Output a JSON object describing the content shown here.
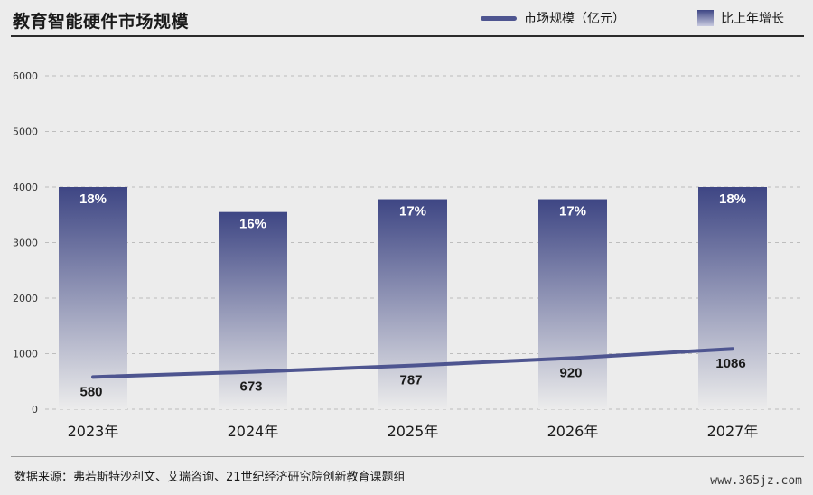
{
  "header": {
    "title": "教育智能硬件市场规模"
  },
  "legend": {
    "line_label": "市场规模（亿元）",
    "bar_label": "比上年增长"
  },
  "colors": {
    "line": "#4e5590",
    "bar_top": "#3e4684",
    "bar_bottom": "#ececec",
    "grid": "#bdbdbd"
  },
  "chart_data": {
    "type": "bar",
    "categories": [
      "2023年",
      "2024年",
      "2025年",
      "2026年",
      "2027年"
    ],
    "ylim": [
      0,
      6000
    ],
    "yticks": [
      0,
      1000,
      2000,
      3000,
      4000,
      5000,
      6000
    ],
    "grid": true,
    "legend_position": "top-right",
    "series": [
      {
        "name": "比上年增长",
        "type": "bar",
        "values": [
          4000,
          3550,
          3780,
          3780,
          4000
        ],
        "labels": [
          "18%",
          "16%",
          "17%",
          "17%",
          "18%"
        ]
      },
      {
        "name": "市场规模（亿元）",
        "type": "line",
        "values": [
          580,
          673,
          787,
          920,
          1086
        ],
        "labels": [
          "580",
          "673",
          "787",
          "920",
          "1086"
        ]
      }
    ]
  },
  "footer": {
    "source": "数据来源：弗若斯特沙利文、艾瑞咨询、21世纪经济研究院创新教育课题组",
    "watermark": "www.365jz.com"
  }
}
